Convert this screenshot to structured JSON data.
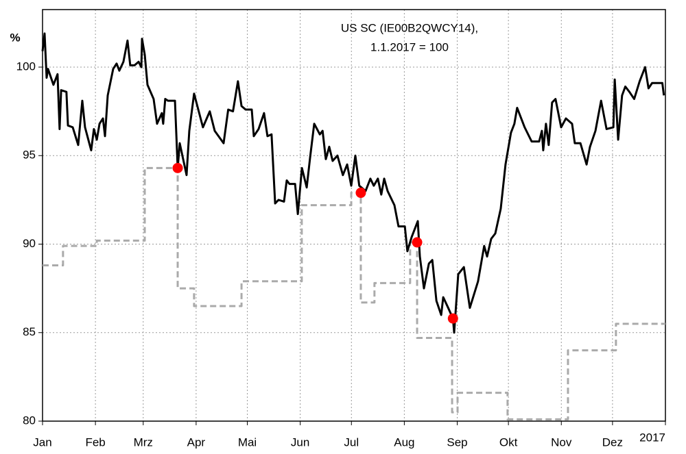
{
  "chart_data": {
    "type": "line",
    "title": "US SC (IE00B2QWCY14),",
    "subtitle": "1.1.2017 = 100",
    "ylabel": "%",
    "xlim": [
      0,
      365
    ],
    "ylim": [
      80,
      103.25
    ],
    "yticks": [
      80,
      85,
      90,
      95,
      100
    ],
    "xticks": [
      {
        "value": 0,
        "label": "Jan"
      },
      {
        "value": 31,
        "label": "Feb"
      },
      {
        "value": 59,
        "label": "Mrz"
      },
      {
        "value": 90,
        "label": "Apr"
      },
      {
        "value": 120,
        "label": "Mai"
      },
      {
        "value": 151,
        "label": "Jun"
      },
      {
        "value": 181,
        "label": "Jul"
      },
      {
        "value": 212,
        "label": "Aug"
      },
      {
        "value": 243,
        "label": "Sep"
      },
      {
        "value": 273,
        "label": "Okt"
      },
      {
        "value": 304,
        "label": "Nov"
      },
      {
        "value": 334,
        "label": "Dez"
      },
      {
        "value": 365,
        "label": "2017"
      }
    ],
    "grid": true,
    "series": [
      {
        "color": "#aaaaaa",
        "style": "dashed-step",
        "x": [
          0,
          12,
          31.8,
          59.9,
          79.2,
          88.8,
          116.6,
          151.9,
          180.9,
          186.5,
          194.5,
          215.4,
          219.5,
          240,
          243.2,
          272.5,
          307.9,
          336,
          365
        ],
        "values": [
          88.8,
          89.9,
          90.2,
          94.3,
          87.5,
          86.5,
          87.9,
          92.2,
          92.9,
          86.7,
          87.8,
          90.1,
          84.7,
          80.5,
          81.6,
          80.1,
          84.0,
          85.5,
          85.5
        ]
      },
      {
        "color": "#000000",
        "style": "line",
        "x": [
          0,
          1.2,
          2.4,
          3.2,
          6.4,
          8.8,
          10,
          10.9,
          14,
          14.9,
          17.7,
          20.9,
          23.3,
          24.9,
          28.5,
          30.1,
          31.8,
          33.4,
          35.4,
          36.6,
          38.2,
          41.4,
          43.4,
          45,
          47.4,
          49.8,
          51.4,
          53.9,
          56.3,
          57.9,
          58.3,
          59.9,
          61.5,
          65.1,
          67.1,
          69.9,
          70.7,
          71.9,
          73.5,
          77.6,
          79.2,
          80.4,
          84.4,
          86,
          88.8,
          94,
          98,
          100.9,
          106.1,
          108.8,
          111.6,
          114.5,
          116.6,
          119,
          122.6,
          123.8,
          126.6,
          129.8,
          131.8,
          134.2,
          136.3,
          138.3,
          141.5,
          143.1,
          144.7,
          148,
          149.6,
          152,
          154.8,
          156.8,
          159.2,
          162.5,
          164.1,
          166,
          168,
          170,
          172.8,
          176,
          178.5,
          180.9,
          183.3,
          185.6,
          189.3,
          192.1,
          194.1,
          196.5,
          198.5,
          200.2,
          202.2,
          206.2,
          208.6,
          212.3,
          213.8,
          216.3,
          219.9,
          221.1,
          223.5,
          226.4,
          228.4,
          230.8,
          233.6,
          234.8,
          237.7,
          240.5,
          241.2,
          243.6,
          246.9,
          250.4,
          255.2,
          258.8,
          260.5,
          262.9,
          265.3,
          268.5,
          271.3,
          274.5,
          276.5,
          278.1,
          282.5,
          286.6,
          291,
          292.6,
          293.4,
          295,
          296.6,
          298.6,
          300.6,
          303.9,
          306.7,
          310.3,
          311.9,
          315.2,
          318.8,
          320.8,
          324,
          327.3,
          330.5,
          334.5,
          335.3,
          337.3,
          339.6,
          341.5,
          343.9,
          346.7,
          349.9,
          353.1,
          355.1,
          357.2,
          363.2,
          364.1
        ],
        "values": [
          100.9,
          101.9,
          99.4,
          99.9,
          99.0,
          99.6,
          96.5,
          98.7,
          98.6,
          96.7,
          96.6,
          95.6,
          98.1,
          96.6,
          95.3,
          96.5,
          95.9,
          96.8,
          97.1,
          96.1,
          98.4,
          99.9,
          100.2,
          99.8,
          100.3,
          101.5,
          100.1,
          100.1,
          100.3,
          100.0,
          101.6,
          100.7,
          99.0,
          98.2,
          96.8,
          97.4,
          96.8,
          98.2,
          98.1,
          98.1,
          94.3,
          95.7,
          93.9,
          96.4,
          98.5,
          96.6,
          97.5,
          96.4,
          95.7,
          97.6,
          97.5,
          99.2,
          97.8,
          97.6,
          97.6,
          96.1,
          96.5,
          97.4,
          96.1,
          96.2,
          92.3,
          92.5,
          92.4,
          93.6,
          93.4,
          93.4,
          91.7,
          94.3,
          93.2,
          94.9,
          96.8,
          96.2,
          96.4,
          94.8,
          95.5,
          94.7,
          95.0,
          93.9,
          94.5,
          93.3,
          95.0,
          93.3,
          93.0,
          93.7,
          93.3,
          93.7,
          92.8,
          93.7,
          93.0,
          92.2,
          91.0,
          91.0,
          89.6,
          90.4,
          91.3,
          89.3,
          87.5,
          88.9,
          89.1,
          86.8,
          86.0,
          87.0,
          86.4,
          85.8,
          85.0,
          88.3,
          88.7,
          86.4,
          87.9,
          89.9,
          89.3,
          90.3,
          90.6,
          92.0,
          94.5,
          96.3,
          96.8,
          97.7,
          96.6,
          95.8,
          95.8,
          96.4,
          95.3,
          96.8,
          95.6,
          98.0,
          98.2,
          96.6,
          97.1,
          96.8,
          95.7,
          95.7,
          94.5,
          95.5,
          96.4,
          98.1,
          96.5,
          96.6,
          99.3,
          95.9,
          98.4,
          98.9,
          98.6,
          98.2,
          99.2,
          100.0,
          98.8,
          99.1,
          99.1,
          98.4
        ]
      },
      {
        "color": "#ff0000",
        "style": "markers",
        "x": [
          79.2,
          186.5,
          219.5,
          240.5
        ],
        "values": [
          94.3,
          92.9,
          90.1,
          85.8
        ]
      }
    ]
  }
}
